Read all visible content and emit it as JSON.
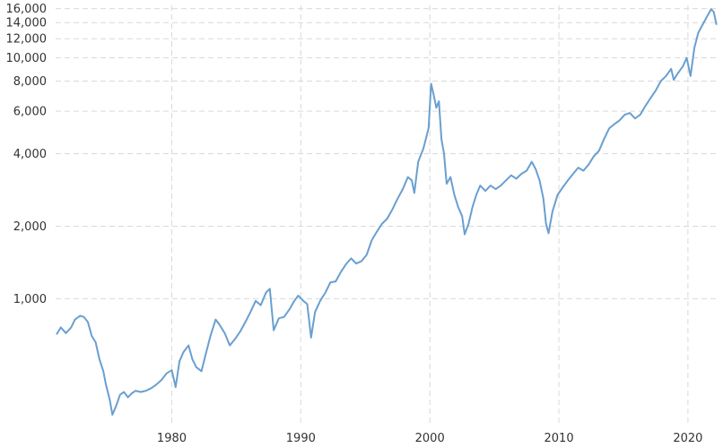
{
  "chart_data": {
    "type": "line",
    "title": "",
    "xlabel": "",
    "ylabel": "",
    "y_scale": "log",
    "xlim": [
      1971.0,
      2022.3
    ],
    "ylim": [
      300,
      16500
    ],
    "grid": true,
    "legend": "none",
    "x_ticks": [
      {
        "value": 1980,
        "label": "1980"
      },
      {
        "value": 1990,
        "label": "1990"
      },
      {
        "value": 2000,
        "label": "2000"
      },
      {
        "value": 2010,
        "label": "2010"
      },
      {
        "value": 2020,
        "label": "2020"
      }
    ],
    "y_ticks": [
      {
        "value": 1000,
        "label": "1,000"
      },
      {
        "value": 2000,
        "label": "2,000"
      },
      {
        "value": 4000,
        "label": "4,000"
      },
      {
        "value": 6000,
        "label": "6,000"
      },
      {
        "value": 8000,
        "label": "8,000"
      },
      {
        "value": 10000,
        "label": "10,000"
      },
      {
        "value": 12000,
        "label": "12,000"
      },
      {
        "value": 14000,
        "label": "14,000"
      },
      {
        "value": 16000,
        "label": "16,000"
      }
    ],
    "series": [
      {
        "color": "#6a9fd0",
        "points": [
          [
            1971.1,
            715
          ],
          [
            1971.4,
            760
          ],
          [
            1971.8,
            720
          ],
          [
            1972.2,
            760
          ],
          [
            1972.5,
            820
          ],
          [
            1972.9,
            850
          ],
          [
            1973.2,
            840
          ],
          [
            1973.5,
            800
          ],
          [
            1973.8,
            700
          ],
          [
            1974.1,
            660
          ],
          [
            1974.4,
            560
          ],
          [
            1974.7,
            500
          ],
          [
            1974.9,
            440
          ],
          [
            1975.2,
            380
          ],
          [
            1975.4,
            330
          ],
          [
            1975.7,
            360
          ],
          [
            1976.0,
            400
          ],
          [
            1976.3,
            410
          ],
          [
            1976.6,
            390
          ],
          [
            1976.9,
            405
          ],
          [
            1977.2,
            415
          ],
          [
            1977.6,
            410
          ],
          [
            1978.0,
            415
          ],
          [
            1978.4,
            425
          ],
          [
            1978.8,
            440
          ],
          [
            1979.2,
            460
          ],
          [
            1979.6,
            490
          ],
          [
            1980.0,
            505
          ],
          [
            1980.3,
            430
          ],
          [
            1980.6,
            550
          ],
          [
            1980.9,
            600
          ],
          [
            1981.3,
            640
          ],
          [
            1981.6,
            560
          ],
          [
            1981.9,
            520
          ],
          [
            1982.3,
            500
          ],
          [
            1982.6,
            580
          ],
          [
            1983.0,
            700
          ],
          [
            1983.4,
            820
          ],
          [
            1983.7,
            780
          ],
          [
            1984.1,
            720
          ],
          [
            1984.5,
            640
          ],
          [
            1984.9,
            680
          ],
          [
            1985.3,
            730
          ],
          [
            1985.7,
            800
          ],
          [
            1986.1,
            880
          ],
          [
            1986.5,
            980
          ],
          [
            1986.9,
            940
          ],
          [
            1987.3,
            1060
          ],
          [
            1987.6,
            1100
          ],
          [
            1987.9,
            740
          ],
          [
            1988.3,
            830
          ],
          [
            1988.7,
            840
          ],
          [
            1989.1,
            900
          ],
          [
            1989.5,
            980
          ],
          [
            1989.8,
            1030
          ],
          [
            1990.2,
            980
          ],
          [
            1990.5,
            950
          ],
          [
            1990.8,
            690
          ],
          [
            1991.1,
            880
          ],
          [
            1991.5,
            980
          ],
          [
            1991.9,
            1060
          ],
          [
            1992.3,
            1170
          ],
          [
            1992.7,
            1180
          ],
          [
            1993.1,
            1290
          ],
          [
            1993.5,
            1390
          ],
          [
            1993.9,
            1470
          ],
          [
            1994.3,
            1400
          ],
          [
            1994.7,
            1430
          ],
          [
            1995.1,
            1520
          ],
          [
            1995.5,
            1750
          ],
          [
            1995.9,
            1900
          ],
          [
            1996.3,
            2050
          ],
          [
            1996.7,
            2150
          ],
          [
            1997.1,
            2350
          ],
          [
            1997.5,
            2600
          ],
          [
            1997.9,
            2850
          ],
          [
            1998.3,
            3200
          ],
          [
            1998.6,
            3100
          ],
          [
            1998.8,
            2750
          ],
          [
            1999.1,
            3700
          ],
          [
            1999.5,
            4200
          ],
          [
            1999.9,
            5100
          ],
          [
            2000.1,
            7800
          ],
          [
            2000.3,
            7000
          ],
          [
            2000.5,
            6200
          ],
          [
            2000.7,
            6600
          ],
          [
            2000.9,
            4600
          ],
          [
            2001.1,
            4000
          ],
          [
            2001.3,
            3000
          ],
          [
            2001.6,
            3200
          ],
          [
            2001.9,
            2700
          ],
          [
            2002.2,
            2400
          ],
          [
            2002.5,
            2200
          ],
          [
            2002.7,
            1850
          ],
          [
            2003.0,
            2050
          ],
          [
            2003.3,
            2400
          ],
          [
            2003.6,
            2700
          ],
          [
            2003.9,
            2950
          ],
          [
            2004.3,
            2800
          ],
          [
            2004.7,
            2950
          ],
          [
            2005.1,
            2850
          ],
          [
            2005.5,
            2950
          ],
          [
            2005.9,
            3100
          ],
          [
            2006.3,
            3250
          ],
          [
            2006.7,
            3150
          ],
          [
            2007.1,
            3300
          ],
          [
            2007.5,
            3400
          ],
          [
            2007.9,
            3700
          ],
          [
            2008.2,
            3450
          ],
          [
            2008.5,
            3100
          ],
          [
            2008.8,
            2600
          ],
          [
            2009.0,
            2050
          ],
          [
            2009.2,
            1870
          ],
          [
            2009.5,
            2300
          ],
          [
            2009.9,
            2700
          ],
          [
            2010.3,
            2900
          ],
          [
            2010.7,
            3100
          ],
          [
            2011.1,
            3300
          ],
          [
            2011.5,
            3500
          ],
          [
            2011.9,
            3400
          ],
          [
            2012.3,
            3600
          ],
          [
            2012.7,
            3900
          ],
          [
            2013.1,
            4100
          ],
          [
            2013.5,
            4600
          ],
          [
            2013.9,
            5100
          ],
          [
            2014.3,
            5300
          ],
          [
            2014.7,
            5500
          ],
          [
            2015.1,
            5800
          ],
          [
            2015.5,
            5900
          ],
          [
            2015.9,
            5600
          ],
          [
            2016.3,
            5800
          ],
          [
            2016.7,
            6300
          ],
          [
            2017.1,
            6800
          ],
          [
            2017.5,
            7300
          ],
          [
            2017.9,
            8000
          ],
          [
            2018.3,
            8400
          ],
          [
            2018.7,
            9000
          ],
          [
            2018.9,
            8100
          ],
          [
            2019.2,
            8600
          ],
          [
            2019.6,
            9200
          ],
          [
            2019.9,
            10000
          ],
          [
            2020.2,
            8400
          ],
          [
            2020.5,
            11000
          ],
          [
            2020.8,
            12700
          ],
          [
            2021.1,
            13600
          ],
          [
            2021.5,
            14900
          ],
          [
            2021.8,
            15900
          ],
          [
            2022.0,
            15500
          ],
          [
            2022.2,
            13800
          ]
        ]
      }
    ]
  }
}
